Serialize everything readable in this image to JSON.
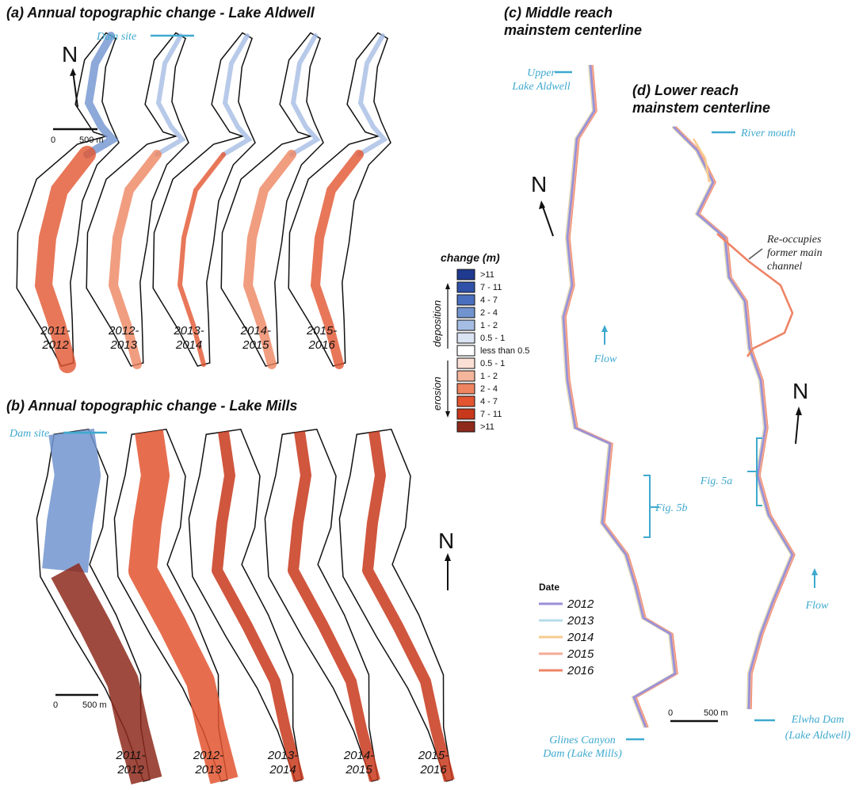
{
  "panel_a": {
    "title": "(a) Annual topographic change - Lake Aldwell",
    "dam_label": "Dam site",
    "north": "N",
    "scale": [
      "0",
      "500 m"
    ],
    "years": [
      [
        "2011-",
        "2012"
      ],
      [
        "2012-",
        "2013"
      ],
      [
        "2013-",
        "2014"
      ],
      [
        "2014-",
        "2015"
      ],
      [
        "2015-",
        "2016"
      ]
    ]
  },
  "panel_b": {
    "title": "(b) Annual topographic change - Lake Mills",
    "dam_label": "Dam site",
    "north": "N",
    "scale": [
      "0",
      "500 m"
    ],
    "years": [
      [
        "2011-",
        "2012"
      ],
      [
        "2012-",
        "2013"
      ],
      [
        "2013-",
        "2014"
      ],
      [
        "2014-",
        "2015"
      ],
      [
        "2015-",
        "2016"
      ]
    ]
  },
  "legend": {
    "title": "change (m)",
    "deposition": "deposition",
    "erosion": "erosion",
    "entries": [
      {
        "label": ">11",
        "color": "#1f3a8f"
      },
      {
        "label": "7 - 11",
        "color": "#2f52a8"
      },
      {
        "label": "4 - 7",
        "color": "#4a6fbf"
      },
      {
        "label": "2 - 4",
        "color": "#7194cf"
      },
      {
        "label": "1 - 2",
        "color": "#a6bde3"
      },
      {
        "label": "0.5 - 1",
        "color": "#dbe4f3"
      },
      {
        "label": "less than 0.5",
        "color": "#ffffff"
      },
      {
        "label": "0.5 - 1",
        "color": "#fbe0d6"
      },
      {
        "label": "1 - 2",
        "color": "#f5b69c"
      },
      {
        "label": "2 - 4",
        "color": "#ee8460"
      },
      {
        "label": "4 - 7",
        "color": "#e25530"
      },
      {
        "label": "7 - 11",
        "color": "#c8381c"
      },
      {
        "label": ">11",
        "color": "#8e2a1c"
      }
    ]
  },
  "panel_c": {
    "title": [
      "(c) Middle reach",
      "mainstem centerline"
    ],
    "upper_label": [
      "Upper",
      "Lake Aldwell"
    ],
    "north": "N",
    "flow": "Flow",
    "fig_ref": "Fig. 5b",
    "dam_label": [
      "Glines Canyon",
      "Dam (Lake Mills)"
    ]
  },
  "panel_d": {
    "title": [
      "(d) Lower reach",
      "mainstem centerline"
    ],
    "mouth_label": "River mouth",
    "note": [
      "Re-occupies",
      "former main",
      "channel"
    ],
    "north": "N",
    "fig_ref": "Fig. 5a",
    "flow": "Flow",
    "scale": [
      "0",
      "500 m"
    ],
    "dam_label": [
      "Elwha Dam",
      "(Lake Aldwell)"
    ]
  },
  "date_legend": {
    "title": "Date",
    "entries": [
      {
        "label": "2012",
        "color": "#9b8fd6"
      },
      {
        "label": "2013",
        "color": "#b5dce9"
      },
      {
        "label": "2014",
        "color": "#f6cb8f"
      },
      {
        "label": "2015",
        "color": "#f2ab95"
      },
      {
        "label": "2016",
        "color": "#ee8466"
      }
    ]
  }
}
